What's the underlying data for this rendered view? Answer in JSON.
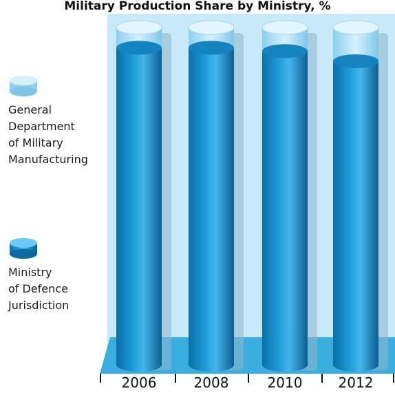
{
  "chart_data": {
    "type": "bar",
    "title": "Military Production Share by Ministry, %",
    "categories": [
      "2006",
      "2008",
      "2010",
      "2012"
    ],
    "series": [
      {
        "name": "Ministry of Defence Jurisdiction",
        "values": [
          94,
          94,
          93,
          90
        ]
      },
      {
        "name": "General Department of Military Manufacturing",
        "values": [
          6,
          6,
          7,
          10
        ]
      }
    ],
    "ylim": [
      0,
      100
    ],
    "stacked": true,
    "legend_position": "left",
    "colors": {
      "ministry": "#1e9bd7",
      "general": "#bfe7f7",
      "background_panel": "#c8e9f8",
      "floor": "#3aaede"
    }
  },
  "legend": {
    "general_label": "General\nDepartment\nof Military\nManufacturing",
    "ministry_label": "Ministry\nof Defence\nJurisdiction"
  }
}
